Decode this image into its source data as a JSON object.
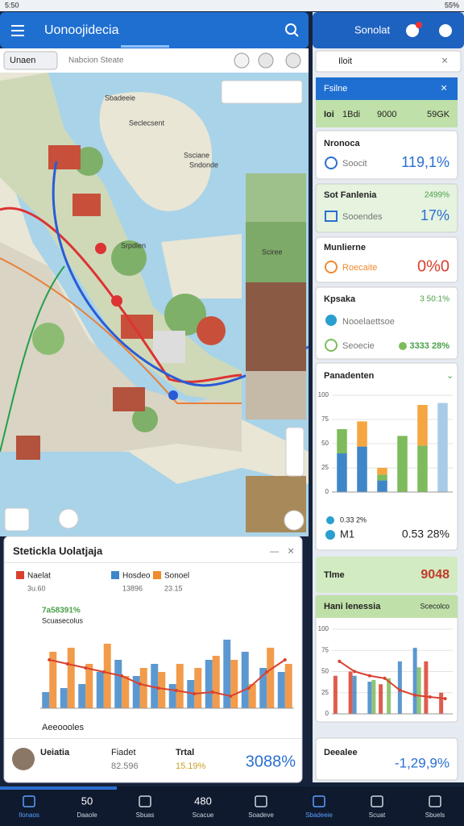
{
  "status_bar": {
    "time": "5:50",
    "battery": "55%"
  },
  "app_bar": {
    "title": "Uonoojidecia"
  },
  "search": {
    "chip": "Unaen",
    "placeholder": "Nabcion Steate"
  },
  "map": {
    "labels": [
      "Sbadeeie",
      "Seclecsent",
      "Ssciane",
      "Sndonde",
      "Srpdlen",
      "Sciree"
    ]
  },
  "stats_panel": {
    "title": "Stetickla Uolatjaja",
    "annotation": "7a58391%",
    "annotation_sub": "Scuasecolus",
    "legend_values": [
      "3u.60",
      "13896",
      "23.15"
    ],
    "chart": {
      "type": "bar",
      "ylim": [
        0,
        100
      ],
      "series": [
        {
          "name": "Naelat",
          "color": "#d9412f",
          "kind": "line",
          "values": [
            60,
            55,
            50,
            45,
            40,
            30,
            25,
            22,
            18,
            20,
            15,
            25,
            45,
            60
          ]
        },
        {
          "name": "Hosdeo",
          "color": "#3f86c8",
          "kind": "bar",
          "values": [
            20,
            25,
            30,
            45,
            60,
            40,
            55,
            30,
            35,
            60,
            85,
            70,
            50,
            45
          ]
        },
        {
          "name": "Sonoel",
          "color": "#f08a2c",
          "kind": "bar",
          "values": [
            70,
            75,
            55,
            80,
            40,
            50,
            45,
            55,
            50,
            65,
            60,
            30,
            75,
            55
          ]
        }
      ]
    },
    "caption": "Aeeoooles",
    "footer": {
      "name": "Ueiatia",
      "label1": "Fiadet",
      "value1": "82.596",
      "label2": "Trtal",
      "value2": "15.19%",
      "total": "3088%"
    }
  },
  "side_panel": {
    "title": "Sonolat",
    "search": "Iloit",
    "header": "Fsilne",
    "summary": [
      "Ioi",
      "1Bdi",
      "9000",
      "59GK"
    ],
    "cards": [
      {
        "title": "Nronoca",
        "subtitle": "Soocit",
        "value": "119,1%"
      },
      {
        "title": "Sot Fanlenia",
        "subtitle": "Sooendes",
        "value": "17%",
        "top_value": "2499%"
      },
      {
        "title": "Munlierne",
        "subtitle": "Roecaite",
        "value": "0%0"
      },
      {
        "title": "Kpsaka",
        "subtitle": "Nooelaettsoe",
        "extra": "Seoecie",
        "value": "3333 28%",
        "top_value": "3 50:1%"
      }
    ],
    "chart": {
      "title": "Panadenten",
      "type": "bar",
      "ylim": [
        0,
        100
      ],
      "yticks": [
        0,
        25,
        50,
        75,
        100
      ],
      "series": [
        {
          "color": "#3f86c8",
          "values": [
            40,
            47,
            12,
            0,
            0,
            0
          ]
        },
        {
          "color": "#7dbb5c",
          "values": [
            25,
            0,
            6,
            58,
            48,
            0
          ]
        },
        {
          "color": "#f5a640",
          "values": [
            0,
            26,
            7,
            0,
            42,
            0
          ]
        },
        {
          "color": "#a8cbe8",
          "values": [
            0,
            0,
            0,
            0,
            0,
            92
          ]
        }
      ],
      "legend": [
        "0.33 2%",
        "M1",
        "0.53 28%"
      ]
    },
    "time_card": {
      "label": "Tlme",
      "value": "9048"
    },
    "chart2": {
      "title": "Hani lenessia",
      "subtitle": "Scecolco",
      "type": "bar",
      "ylim": [
        0,
        100
      ],
      "yticks": [
        0,
        25,
        50,
        75,
        100
      ],
      "series": [
        {
          "color": "#d9412f",
          "kind": "bar",
          "values": [
            45,
            50,
            0,
            35,
            0,
            0,
            62,
            25
          ]
        },
        {
          "color": "#3f86c8",
          "kind": "bar",
          "values": [
            0,
            45,
            38,
            0,
            62,
            78,
            0,
            0
          ]
        },
        {
          "color": "#7dbb5c",
          "kind": "bar",
          "values": [
            0,
            0,
            40,
            42,
            0,
            55,
            0,
            0
          ]
        },
        {
          "color": "#d9412f",
          "kind": "line",
          "values": [
            62,
            50,
            45,
            42,
            28,
            22,
            20,
            18
          ]
        }
      ]
    },
    "footer_card": {
      "label": "Deealee",
      "value": "-1,29,9%"
    }
  },
  "nav": {
    "items": [
      "Ilonaos",
      "Daaole",
      "Sbuas",
      "Scacue",
      "Soadeve",
      "Sbadeeie",
      "Scuat",
      "Sbuels"
    ],
    "badges": [
      "50",
      "480"
    ]
  }
}
